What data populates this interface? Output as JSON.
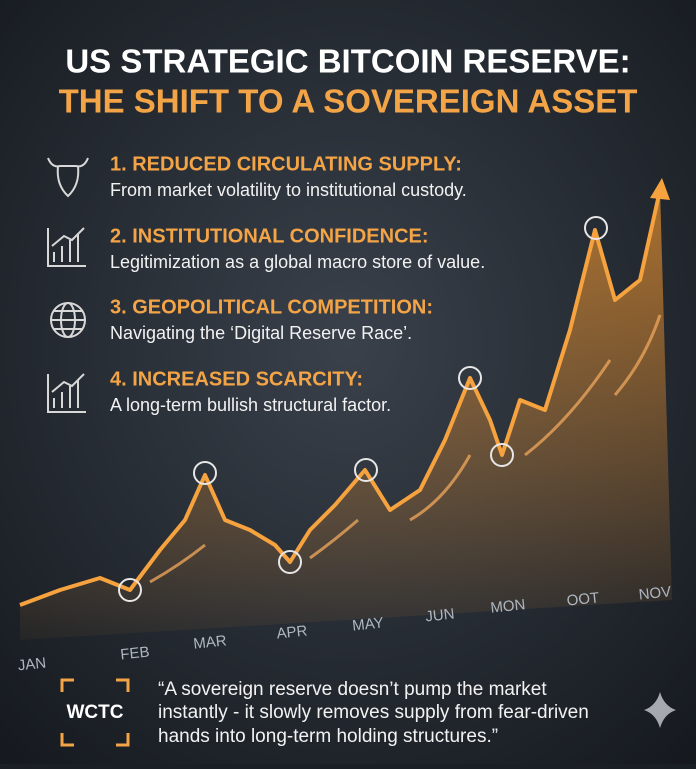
{
  "header": {
    "title_lines": [
      "US STRATEGIC BITCOIN RESERVE:",
      "THE SHIFT TO A SOVEREIGN ASSET"
    ]
  },
  "points": [
    {
      "heading": "1. REDUCED CIRCULATING SUPPLY:",
      "text": "From market volatility to institutional custody."
    },
    {
      "heading": "2. INSTITUTIONAL CONFIDENCE:",
      "text": "Legitimization as a global macro store of value."
    },
    {
      "heading": "3. GEOPOLITICAL COMPETITION:",
      "text": "Navigating the ‘Digital Reserve Race’."
    },
    {
      "heading": "4. INCREASED SCARCITY:",
      "text": "A long-term bullish structural factor."
    }
  ],
  "axis_labels": [
    "JAN",
    "FEB",
    "MAR",
    "APR",
    "MAY",
    "JUN",
    "MON",
    "OOT",
    "NOV"
  ],
  "quote": {
    "logo": "WCTC",
    "lines": [
      "“A sovereign reserve doesn’t pump the market",
      "instantly - it slowly removes supply from fear-driven",
      "hands into long-term holding structures.”"
    ]
  }
}
